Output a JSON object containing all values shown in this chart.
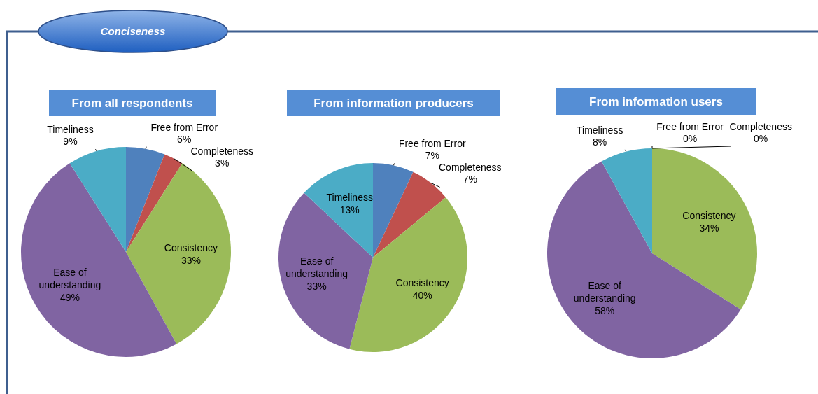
{
  "chart_data": [
    {
      "type": "pie",
      "title": "From all respondents",
      "annotations": [
        "Conciseness"
      ],
      "categories": [
        "Free from Error",
        "Completeness",
        "Consistency",
        "Ease of understanding",
        "Timeliness"
      ],
      "values": [
        6,
        3,
        33,
        49,
        9
      ],
      "value_labels": [
        "6%",
        "3%",
        "33%",
        "49%",
        "9%"
      ],
      "data_labels": true,
      "colors": [
        "#4f81bd",
        "#c0504d",
        "#9bbb59",
        "#8064a2",
        "#4bacc6"
      ]
    },
    {
      "type": "pie",
      "title": "From information producers",
      "categories": [
        "Free from Error",
        "Completeness",
        "Consistency",
        "Ease of understanding",
        "Timeliness"
      ],
      "values": [
        7,
        7,
        40,
        33,
        13
      ],
      "value_labels": [
        "7%",
        "7%",
        "40%",
        "33%",
        "13%"
      ],
      "data_labels": true,
      "colors": [
        "#4f81bd",
        "#c0504d",
        "#9bbb59",
        "#8064a2",
        "#4bacc6"
      ]
    },
    {
      "type": "pie",
      "title": "From information users",
      "categories": [
        "Free from Error",
        "Completeness",
        "Consistency",
        "Ease of understanding",
        "Timeliness"
      ],
      "values": [
        0,
        0,
        34,
        58,
        8
      ],
      "value_labels": [
        "0%",
        "0%",
        "34%",
        "58%",
        "8%"
      ],
      "data_labels": true,
      "colors": [
        "#4f81bd",
        "#c0504d",
        "#9bbb59",
        "#8064a2",
        "#4bacc6"
      ]
    }
  ]
}
